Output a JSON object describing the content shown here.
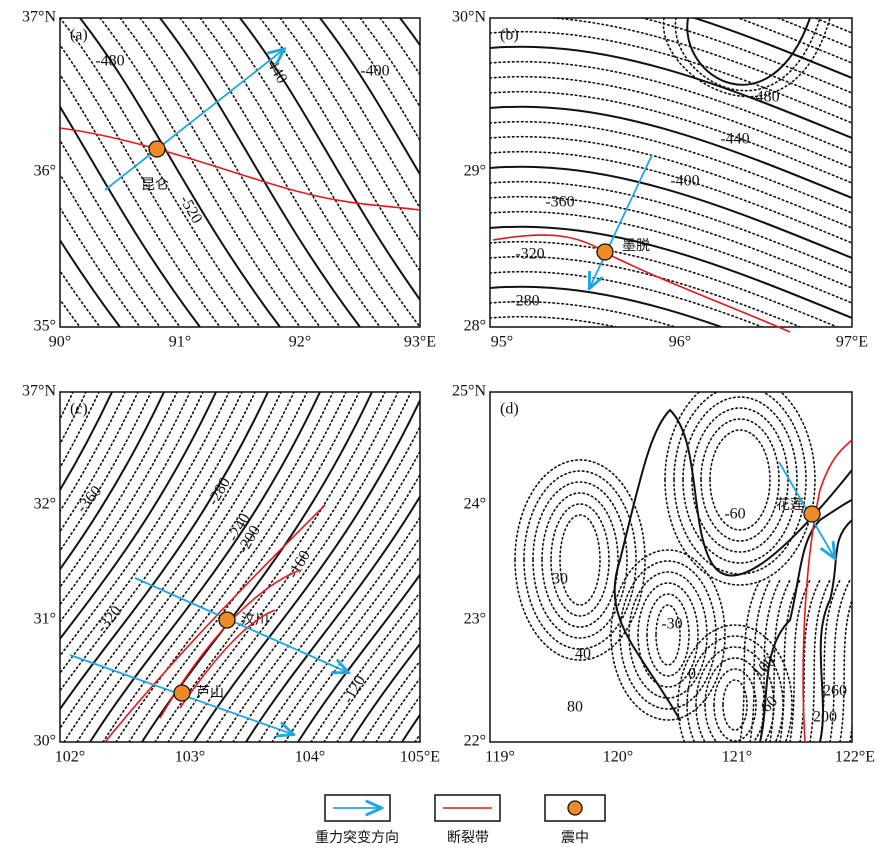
{
  "panels": [
    {
      "label": "(a)",
      "xticks": [
        "90°",
        "91°",
        "92°",
        "93°E"
      ],
      "yticks": [
        "37°N",
        "36°",
        "35°"
      ],
      "contour_labels": [
        "-480",
        "-440",
        "-400",
        "-520"
      ],
      "places": [
        "昆仑"
      ]
    },
    {
      "label": "(b)",
      "xticks": [
        "95°",
        "96°",
        "97°E"
      ],
      "yticks": [
        "30°N",
        "29°",
        "28°"
      ],
      "contour_labels": [
        "-480",
        "-440",
        "-400",
        "-360",
        "-320",
        "-280"
      ],
      "places": [
        "墨脱"
      ]
    },
    {
      "label": "(c)",
      "xticks": [
        "102°",
        "103°",
        "104°",
        "105°E"
      ],
      "yticks": [
        "37°N",
        "32°",
        "31°",
        "30°"
      ],
      "contour_labels": [
        "-360",
        "-320",
        "-280",
        "-240",
        "-200",
        "-160",
        "-120"
      ],
      "places": [
        "汶川",
        "芦山"
      ]
    },
    {
      "label": "(d)",
      "xticks": [
        "119°",
        "120°",
        "121°",
        "122°E"
      ],
      "yticks": [
        "25°N",
        "24°",
        "23°",
        "22°"
      ],
      "contour_labels": [
        "-60",
        "-30",
        "30",
        "40",
        "80",
        "0",
        "100",
        "60",
        "260",
        "200"
      ],
      "places": [
        "花莲"
      ]
    }
  ],
  "legend": [
    "重力突变方向",
    "断裂带",
    "震中"
  ]
}
